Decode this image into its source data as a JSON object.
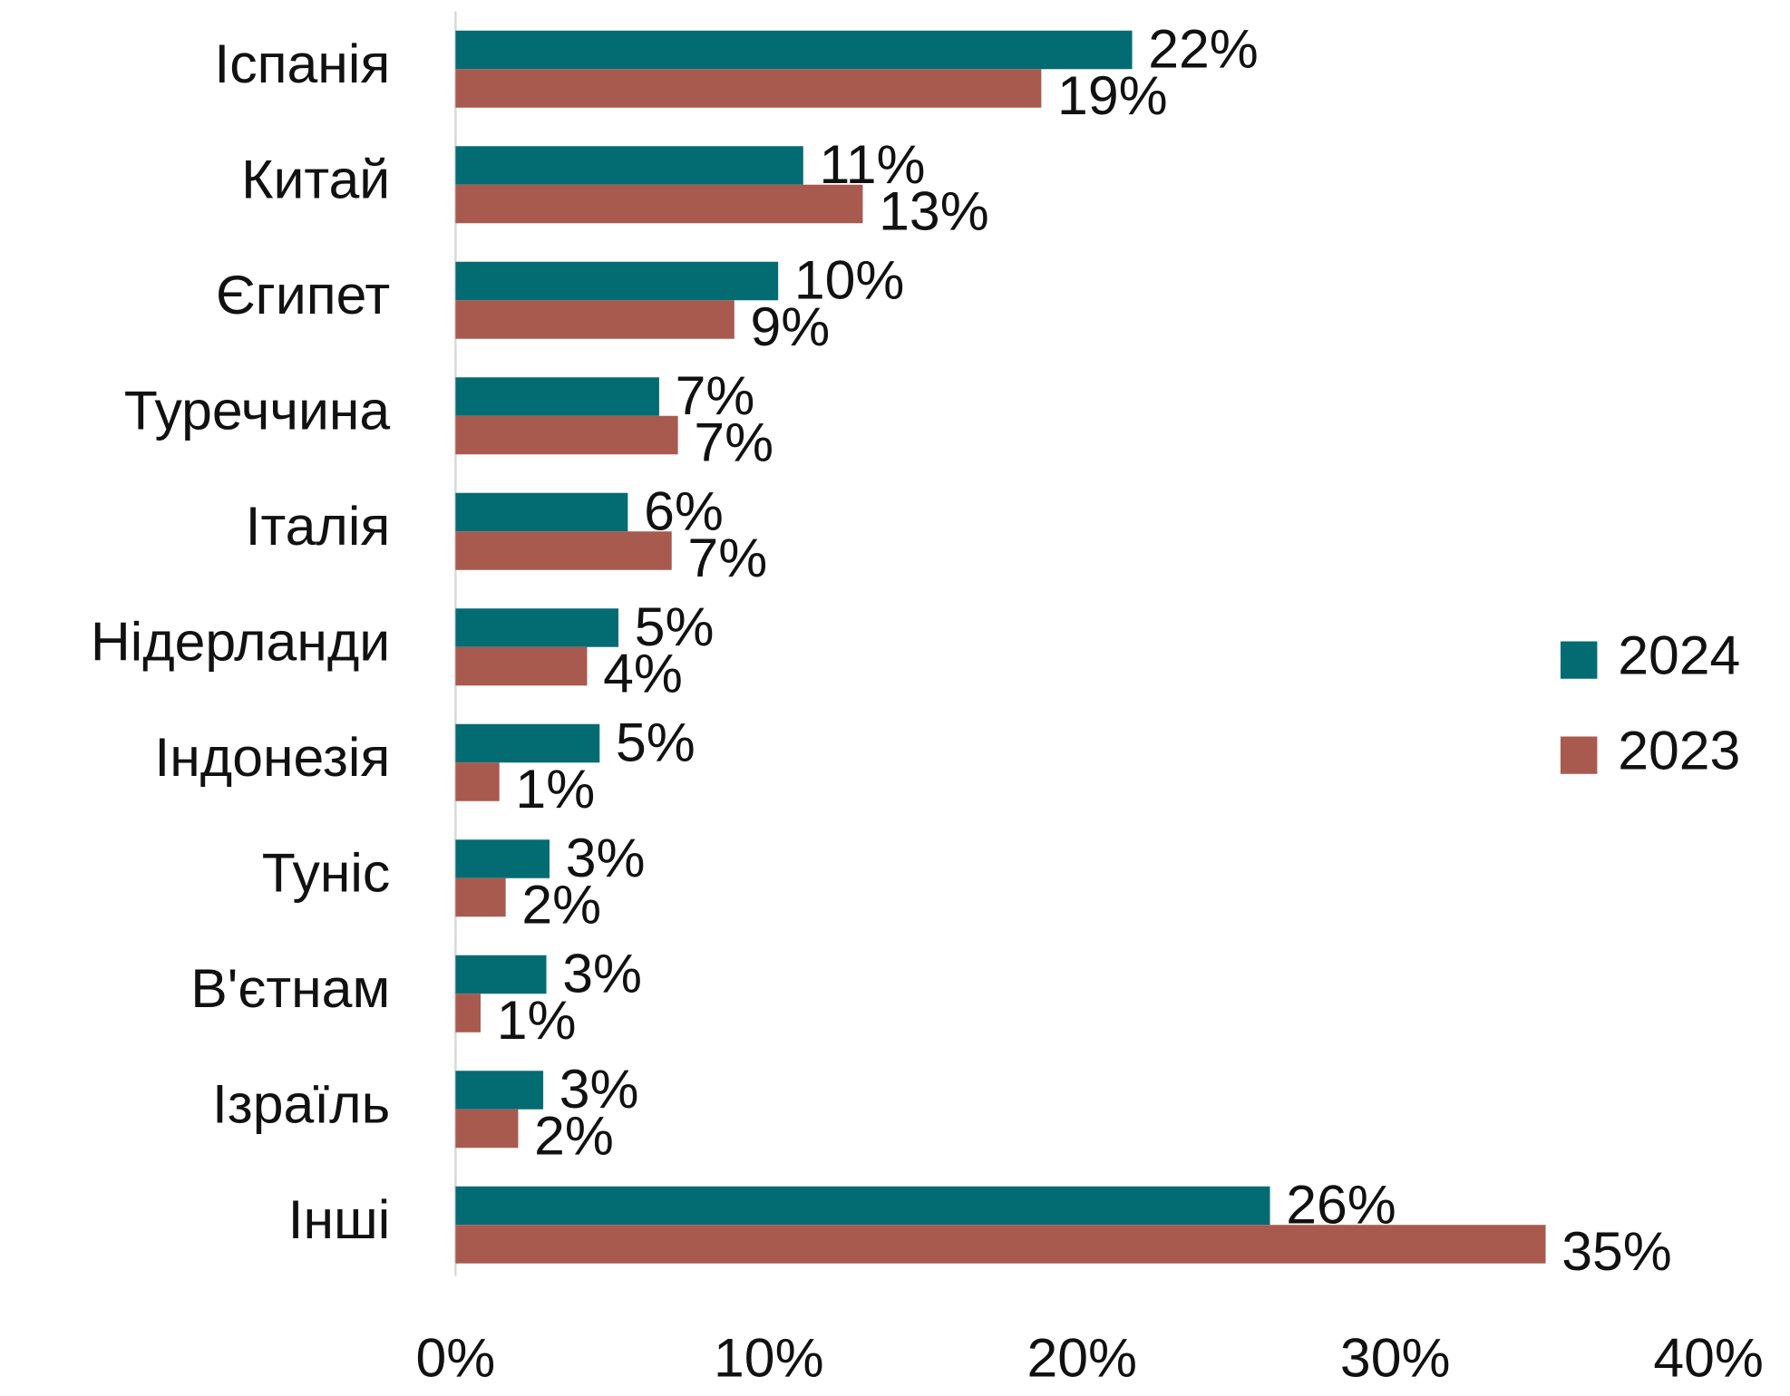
{
  "chart_data": {
    "type": "bar",
    "orientation": "horizontal",
    "categories": [
      "Іспанія",
      "Китай",
      "Єгипет",
      "Туреччина",
      "Італія",
      "Нідерланди",
      "Індонезія",
      "Туніс",
      "В'єтнам",
      "Ізраїль",
      "Інші"
    ],
    "series": [
      {
        "name": "2024",
        "color": "#036c73",
        "values": [
          21.6,
          11.1,
          10.3,
          6.5,
          5.5,
          5.2,
          4.6,
          3.0,
          2.9,
          2.8,
          26.0
        ],
        "value_labels": [
          "22%",
          "11%",
          "10%",
          "7%",
          "6%",
          "5%",
          "5%",
          "3%",
          "3%",
          "3%",
          "26%"
        ]
      },
      {
        "name": "2023",
        "color": "#a85a4f",
        "values": [
          18.7,
          13.0,
          8.9,
          7.1,
          6.9,
          4.2,
          1.4,
          1.6,
          0.8,
          2.0,
          34.8
        ],
        "value_labels": [
          "19%",
          "13%",
          "9%",
          "7%",
          "7%",
          "4%",
          "1%",
          "2%",
          "1%",
          "2%",
          "35%"
        ]
      }
    ],
    "xlim": [
      0,
      40
    ],
    "xticks": [
      {
        "value": 0,
        "label": "0%"
      },
      {
        "value": 10,
        "label": "10%"
      },
      {
        "value": 20,
        "label": "20%"
      },
      {
        "value": 30,
        "label": "30%"
      },
      {
        "value": 40,
        "label": "40%"
      }
    ],
    "legend": "right"
  }
}
